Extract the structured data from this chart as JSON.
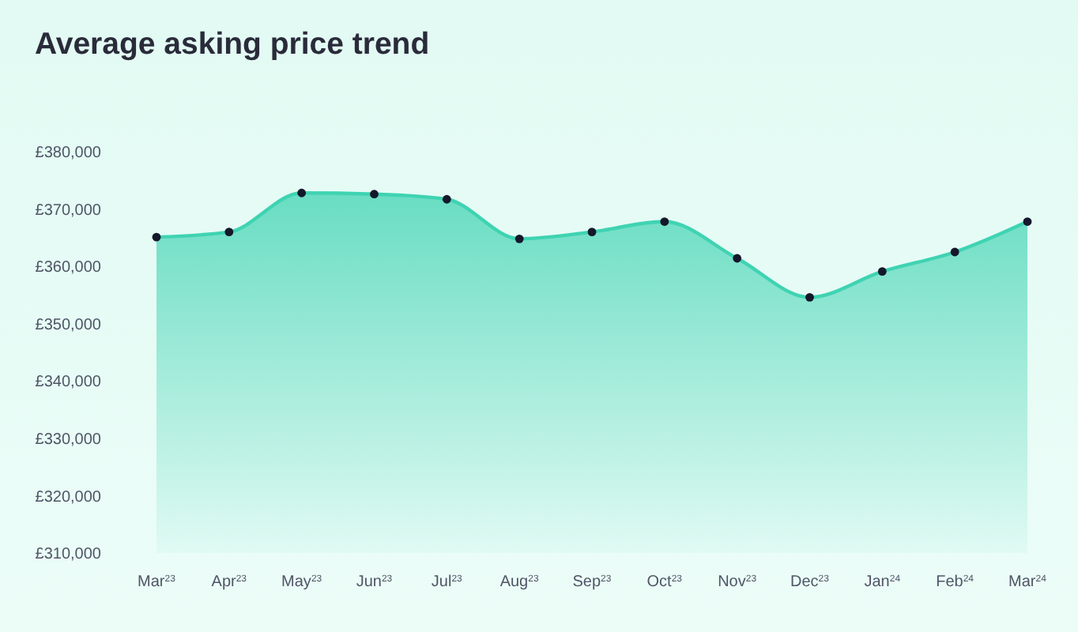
{
  "chart_data": {
    "type": "area",
    "title": "Average asking price trend",
    "categories": [
      "Mar$^{23}$",
      "Apr$^{23}$",
      "May$^{23}$",
      "Jun$^{23}$",
      "Jul$^{23}$",
      "Aug$^{23}$",
      "Sep$^{23}$",
      "Oct$^{23}$",
      "Nov$^{23}$",
      "Dec$^{23}$",
      "Jan$^{24}$",
      "Feb$^{24}$",
      "Mar$^{24}$"
    ],
    "series": [
      {
        "color": "#3fd3b2",
        "values": [
          365100,
          366000,
          372800,
          372600,
          371700,
          364800,
          366000,
          367800,
          361400,
          354600,
          359100,
          362500,
          367800
        ]
      }
    ],
    "ylim": [
      310000,
      380000
    ],
    "yticks": [
      {
        "value": 310000,
        "label": "£310,000"
      },
      {
        "value": 320000,
        "label": "£320,000"
      },
      {
        "value": 330000,
        "label": "£330,000"
      },
      {
        "value": 340000,
        "label": "£340,000"
      },
      {
        "value": 350000,
        "label": "£350,000"
      },
      {
        "value": 360000,
        "label": "£360,000"
      },
      {
        "value": 370000,
        "label": "£370,000"
      },
      {
        "value": 380000,
        "label": "£380,000"
      }
    ],
    "marker": "circle"
  }
}
